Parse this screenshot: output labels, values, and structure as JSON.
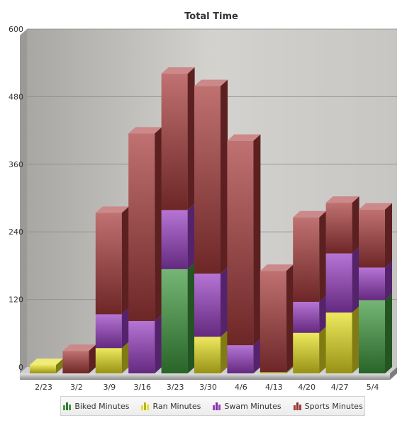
{
  "chart_data": {
    "type": "bar",
    "stacked": true,
    "title": "Total Time",
    "xlabel": "",
    "ylabel": "",
    "ylim": [
      0,
      600
    ],
    "yticks": [
      0,
      120,
      240,
      360,
      480,
      600
    ],
    "grid": true,
    "legend_position": "bottom",
    "categories": [
      "2/23",
      "3/2",
      "3/9",
      "3/16",
      "3/23",
      "3/30",
      "4/6",
      "4/13",
      "4/20",
      "4/27",
      "5/4"
    ],
    "series": [
      {
        "name": "Biked Minutes",
        "color": "#3f9a3f",
        "values": [
          0,
          0,
          0,
          0,
          185,
          0,
          0,
          0,
          0,
          0,
          130
        ]
      },
      {
        "name": "Ran Minutes",
        "color": "#e8e020",
        "values": [
          15,
          0,
          45,
          0,
          0,
          65,
          0,
          2,
          72,
          108,
          0
        ]
      },
      {
        "name": "Swam Minutes",
        "color": "#9a3fc4",
        "values": [
          0,
          0,
          60,
          93,
          105,
          112,
          50,
          0,
          55,
          105,
          58
        ]
      },
      {
        "name": "Sports Minutes",
        "color": "#a83a3a",
        "values": [
          0,
          40,
          180,
          333,
          242,
          333,
          363,
          180,
          150,
          90,
          103
        ]
      }
    ]
  }
}
